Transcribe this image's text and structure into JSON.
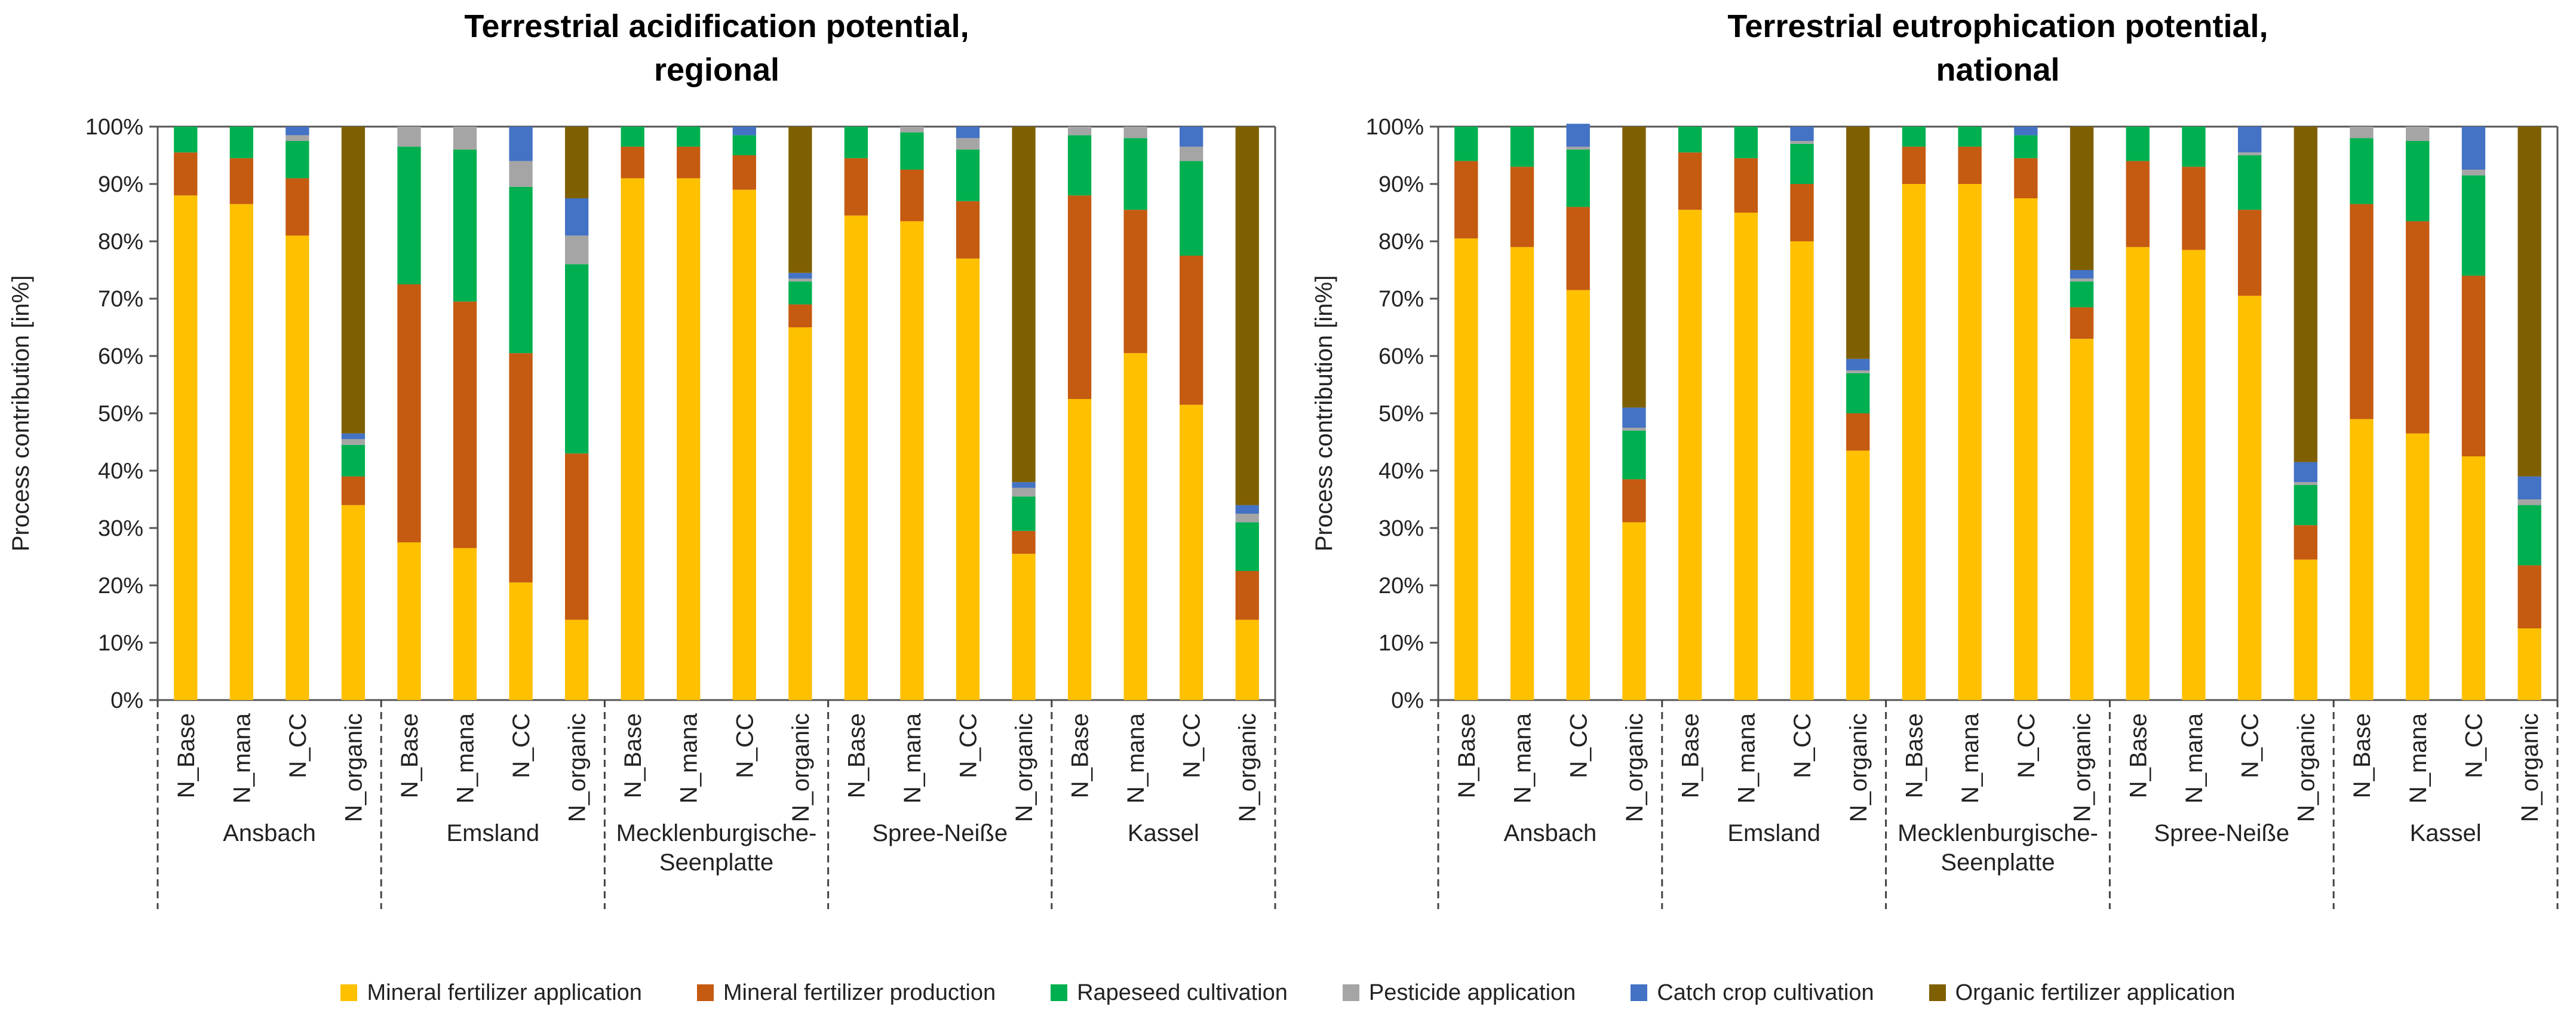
{
  "chart_data": [
    {
      "type": "bar",
      "stacked": true,
      "title": "Terrestrial acidification potential, regional",
      "title_lines": [
        "Terrestrial acidification potential,",
        "regional"
      ],
      "ylabel": "Process contribution  [in%]",
      "xlabel": "",
      "ylim": [
        0,
        100
      ],
      "yticks": [
        "0%",
        "10%",
        "20%",
        "30%",
        "40%",
        "50%",
        "60%",
        "70%",
        "80%",
        "90%",
        "100%"
      ],
      "groups": [
        {
          "name_lines": [
            "Ansbach"
          ],
          "categories": [
            "N_Base",
            "N_mana",
            "N_CC",
            "N_organic"
          ]
        },
        {
          "name_lines": [
            "Emsland"
          ],
          "categories": [
            "N_Base",
            "N_mana",
            "N_CC",
            "N_organic"
          ]
        },
        {
          "name_lines": [
            "Mecklenburgische-",
            "Seenplatte"
          ],
          "categories": [
            "N_Base",
            "N_mana",
            "N_CC",
            "N_organic"
          ]
        },
        {
          "name_lines": [
            "Spree-Neiße"
          ],
          "categories": [
            "N_Base",
            "N_mana",
            "N_CC",
            "N_organic"
          ]
        },
        {
          "name_lines": [
            "Kassel"
          ],
          "categories": [
            "N_Base",
            "N_mana",
            "N_CC",
            "N_organic"
          ]
        }
      ],
      "series": [
        {
          "name": "Mineral fertilizer application",
          "values": [
            88,
            86.5,
            81,
            34,
            27.5,
            26.5,
            20.5,
            14,
            91,
            91,
            89,
            65,
            84.5,
            83.5,
            77,
            25.5,
            52.5,
            60.5,
            51.5,
            14
          ]
        },
        {
          "name": "Mineral fertilizer production",
          "values": [
            7.5,
            8,
            10,
            5,
            45,
            43,
            40,
            29,
            5.5,
            5.5,
            6,
            4,
            10,
            9,
            10,
            4,
            35.5,
            25,
            26,
            8.5
          ]
        },
        {
          "name": "Rapeseed cultivation",
          "values": [
            4.5,
            5.5,
            6.5,
            5.5,
            24,
            26.5,
            29,
            33,
            3.5,
            3.5,
            3.5,
            4,
            5.5,
            6.5,
            9,
            6,
            10.5,
            12.5,
            16.5,
            8.5
          ]
        },
        {
          "name": "Pesticide application",
          "values": [
            0,
            0,
            1,
            1,
            3.5,
            4,
            4.5,
            5,
            0,
            0,
            0,
            0.5,
            0,
            1,
            2,
            1.5,
            1.5,
            2,
            2.5,
            1.5
          ]
        },
        {
          "name": "Catch crop cultivation",
          "values": [
            0,
            0,
            1.5,
            1,
            0,
            0,
            6,
            6.5,
            0,
            0,
            1.5,
            1,
            0,
            0,
            2,
            1,
            0,
            0,
            3.5,
            1.5
          ]
        },
        {
          "name": "Organic fertilizer application",
          "values": [
            0,
            0,
            0,
            53.5,
            0,
            0,
            0,
            12.5,
            0,
            0,
            0,
            25.5,
            0,
            0,
            0,
            62,
            0,
            0,
            0,
            66
          ]
        }
      ]
    },
    {
      "type": "bar",
      "stacked": true,
      "title": "Terrestrial eutrophication potential, national",
      "title_lines": [
        "Terrestrial eutrophication potential,",
        "national"
      ],
      "ylabel": "Process contribution  [in%]",
      "xlabel": "",
      "ylim": [
        0,
        100
      ],
      "yticks": [
        "0%",
        "10%",
        "20%",
        "30%",
        "40%",
        "50%",
        "60%",
        "70%",
        "80%",
        "90%",
        "100%"
      ],
      "groups": [
        {
          "name_lines": [
            "Ansbach"
          ],
          "categories": [
            "N_Base",
            "N_mana",
            "N_CC",
            "N_organic"
          ]
        },
        {
          "name_lines": [
            "Emsland"
          ],
          "categories": [
            "N_Base",
            "N_mana",
            "N_CC",
            "N_organic"
          ]
        },
        {
          "name_lines": [
            "Mecklenburgische-",
            "Seenplatte"
          ],
          "categories": [
            "N_Base",
            "N_mana",
            "N_CC",
            "N_organic"
          ]
        },
        {
          "name_lines": [
            "Spree-Neiße"
          ],
          "categories": [
            "N_Base",
            "N_mana",
            "N_CC",
            "N_organic"
          ]
        },
        {
          "name_lines": [
            "Kassel"
          ],
          "categories": [
            "N_Base",
            "N_mana",
            "N_CC",
            "N_organic"
          ]
        }
      ],
      "series": [
        {
          "name": "Mineral fertilizer application",
          "values": [
            80.5,
            79,
            71.5,
            31,
            85.5,
            85,
            80,
            43.5,
            90,
            90,
            87.5,
            63,
            79,
            78.5,
            70.5,
            24.5,
            49,
            46.5,
            42.5,
            12.5
          ]
        },
        {
          "name": "Mineral fertilizer production",
          "values": [
            13.5,
            14,
            14.5,
            7.5,
            10,
            9.5,
            10,
            6.5,
            6.5,
            6.5,
            7,
            5.5,
            15,
            14.5,
            15,
            6,
            37.5,
            37,
            31.5,
            11
          ]
        },
        {
          "name": "Rapeseed cultivation",
          "values": [
            6,
            7,
            10,
            8.5,
            4.5,
            5.5,
            7,
            7,
            3.5,
            3.5,
            4,
            4.5,
            6,
            7,
            9.5,
            7,
            11.5,
            14,
            17.5,
            10.5
          ]
        },
        {
          "name": "Pesticide application",
          "values": [
            0,
            0,
            0.5,
            0.5,
            0,
            0,
            0.5,
            0.5,
            0,
            0,
            0,
            0.5,
            0,
            0,
            0.5,
            0.5,
            2,
            2.5,
            1,
            1
          ]
        },
        {
          "name": "Catch crop cultivation",
          "values": [
            0,
            0,
            4,
            3.5,
            0,
            0,
            2.5,
            2,
            0,
            0,
            1.5,
            1.5,
            0,
            0,
            4.5,
            3.5,
            0,
            0,
            7.5,
            4
          ]
        },
        {
          "name": "Organic fertilizer application",
          "values": [
            0,
            0,
            0,
            49,
            0,
            0,
            0,
            40.5,
            0,
            0,
            0,
            25,
            0,
            0,
            0,
            58.5,
            0,
            0,
            0,
            61
          ]
        }
      ]
    }
  ],
  "legend": [
    {
      "label": "Mineral fertilizer application",
      "color": "#FFC000"
    },
    {
      "label": "Mineral fertilizer production",
      "color": "#C55A11"
    },
    {
      "label": "Rapeseed cultivation",
      "color": "#00B050"
    },
    {
      "label": "Pesticide application",
      "color": "#A5A5A5"
    },
    {
      "label": "Catch crop cultivation",
      "color": "#4472C4"
    },
    {
      "label": "Organic fertilizer application",
      "color": "#7F6000"
    }
  ]
}
